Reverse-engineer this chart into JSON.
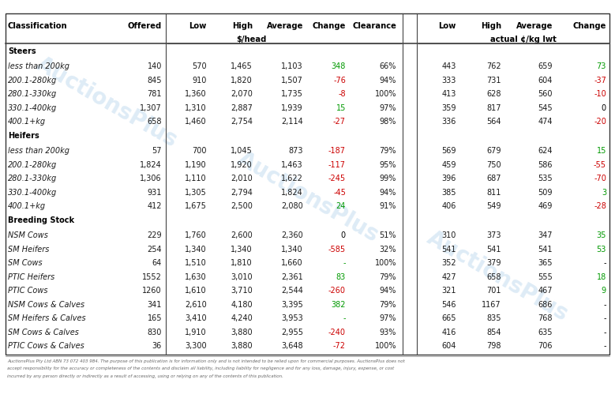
{
  "footer": "AuctionsPlus Pty Ltd ABN 73 072 403 984. The purpose of this publication is for information only and is not intended to be relied upon for commercial purposes. AuctionsPlus does not accept responsibility for the accuracy or completeness of the contents and disclaim all liability, including liability for negligence and for any loss, damage, injury, expense, or cost incurred by any person directly or indirectly as a result of accessing, using or relying on any of the contents of this publication.",
  "sections": [
    {
      "name": "Steers",
      "rows": [
        {
          "label": "less than 200kg",
          "offered": "140",
          "low": "570",
          "high": "1,465",
          "avg": "1,103",
          "change": "348",
          "change_color": "green",
          "clearance": "66%",
          "low2": "443",
          "high2": "762",
          "avg2": "659",
          "change2": "73",
          "change2_color": "green"
        },
        {
          "label": "200.1-280kg",
          "offered": "845",
          "low": "910",
          "high": "1,820",
          "avg": "1,507",
          "change": "-76",
          "change_color": "red",
          "clearance": "94%",
          "low2": "333",
          "high2": "731",
          "avg2": "604",
          "change2": "-37",
          "change2_color": "red"
        },
        {
          "label": "280.1-330kg",
          "offered": "781",
          "low": "1,360",
          "high": "2,070",
          "avg": "1,735",
          "change": "-8",
          "change_color": "red",
          "clearance": "100%",
          "low2": "413",
          "high2": "628",
          "avg2": "560",
          "change2": "-10",
          "change2_color": "red"
        },
        {
          "label": "330.1-400kg",
          "offered": "1,307",
          "low": "1,310",
          "high": "2,887",
          "avg": "1,939",
          "change": "15",
          "change_color": "green",
          "clearance": "97%",
          "low2": "359",
          "high2": "817",
          "avg2": "545",
          "change2": "0",
          "change2_color": "black"
        },
        {
          "label": "400.1+kg",
          "offered": "658",
          "low": "1,460",
          "high": "2,754",
          "avg": "2,114",
          "change": "-27",
          "change_color": "red",
          "clearance": "98%",
          "low2": "336",
          "high2": "564",
          "avg2": "474",
          "change2": "-20",
          "change2_color": "red"
        }
      ]
    },
    {
      "name": "Heifers",
      "rows": [
        {
          "label": "less than 200kg",
          "offered": "57",
          "low": "700",
          "high": "1,045",
          "avg": "873",
          "change": "-187",
          "change_color": "red",
          "clearance": "79%",
          "low2": "569",
          "high2": "679",
          "avg2": "624",
          "change2": "15",
          "change2_color": "green"
        },
        {
          "label": "200.1-280kg",
          "offered": "1,824",
          "low": "1,190",
          "high": "1,920",
          "avg": "1,463",
          "change": "-117",
          "change_color": "red",
          "clearance": "95%",
          "low2": "459",
          "high2": "750",
          "avg2": "586",
          "change2": "-55",
          "change2_color": "red"
        },
        {
          "label": "280.1-330kg",
          "offered": "1,306",
          "low": "1,110",
          "high": "2,010",
          "avg": "1,622",
          "change": "-245",
          "change_color": "red",
          "clearance": "99%",
          "low2": "396",
          "high2": "687",
          "avg2": "535",
          "change2": "-70",
          "change2_color": "red"
        },
        {
          "label": "330.1-400kg",
          "offered": "931",
          "low": "1,305",
          "high": "2,794",
          "avg": "1,824",
          "change": "-45",
          "change_color": "red",
          "clearance": "94%",
          "low2": "385",
          "high2": "811",
          "avg2": "509",
          "change2": "3",
          "change2_color": "green"
        },
        {
          "label": "400.1+kg",
          "offered": "412",
          "low": "1,675",
          "high": "2,500",
          "avg": "2,080",
          "change": "24",
          "change_color": "green",
          "clearance": "91%",
          "low2": "406",
          "high2": "549",
          "avg2": "469",
          "change2": "-28",
          "change2_color": "red"
        }
      ]
    },
    {
      "name": "Breeding Stock",
      "rows": [
        {
          "label": "NSM Cows",
          "offered": "229",
          "low": "1,760",
          "high": "2,600",
          "avg": "2,360",
          "change": "0",
          "change_color": "black",
          "clearance": "51%",
          "low2": "310",
          "high2": "373",
          "avg2": "347",
          "change2": "35",
          "change2_color": "green"
        },
        {
          "label": "SM Heifers",
          "offered": "254",
          "low": "1,340",
          "high": "1,340",
          "avg": "1,340",
          "change": "-585",
          "change_color": "red",
          "clearance": "32%",
          "low2": "541",
          "high2": "541",
          "avg2": "541",
          "change2": "53",
          "change2_color": "green"
        },
        {
          "label": "SM Cows",
          "offered": "64",
          "low": "1,510",
          "high": "1,810",
          "avg": "1,660",
          "change": "-",
          "change_color": "green",
          "clearance": "100%",
          "low2": "352",
          "high2": "379",
          "avg2": "365",
          "change2": "-",
          "change2_color": "black"
        },
        {
          "label": "PTIC Heifers",
          "offered": "1552",
          "low": "1,630",
          "high": "3,010",
          "avg": "2,361",
          "change": "83",
          "change_color": "green",
          "clearance": "79%",
          "low2": "427",
          "high2": "658",
          "avg2": "555",
          "change2": "18",
          "change2_color": "green"
        },
        {
          "label": "PTIC Cows",
          "offered": "1260",
          "low": "1,610",
          "high": "3,710",
          "avg": "2,544",
          "change": "-260",
          "change_color": "red",
          "clearance": "94%",
          "low2": "321",
          "high2": "701",
          "avg2": "467",
          "change2": "9",
          "change2_color": "green"
        },
        {
          "label": "NSM Cows & Calves",
          "offered": "341",
          "low": "2,610",
          "high": "4,180",
          "avg": "3,395",
          "change": "382",
          "change_color": "green",
          "clearance": "79%",
          "low2": "546",
          "high2": "1167",
          "avg2": "686",
          "change2": "-",
          "change2_color": "black"
        },
        {
          "label": "SM Heifers & Calves",
          "offered": "165",
          "low": "3,410",
          "high": "4,240",
          "avg": "3,953",
          "change": "-",
          "change_color": "green",
          "clearance": "97%",
          "low2": "665",
          "high2": "835",
          "avg2": "768",
          "change2": "-",
          "change2_color": "black"
        },
        {
          "label": "SM Cows & Calves",
          "offered": "830",
          "low": "1,910",
          "high": "3,880",
          "avg": "2,955",
          "change": "-240",
          "change_color": "red",
          "clearance": "93%",
          "low2": "416",
          "high2": "854",
          "avg2": "635",
          "change2": "-",
          "change2_color": "black"
        },
        {
          "label": "PTIC Cows & Calves",
          "offered": "36",
          "low": "3,300",
          "high": "3,880",
          "avg": "3,648",
          "change": "-72",
          "change_color": "red",
          "clearance": "100%",
          "low2": "604",
          "high2": "798",
          "avg2": "706",
          "change2": "-",
          "change2_color": "black"
        }
      ]
    }
  ],
  "bg_color": "#ffffff",
  "watermark_color": "#c8dff0",
  "green_color": "#009900",
  "red_color": "#cc0000",
  "black_color": "#000000",
  "text_color": "#1a1a1a",
  "line_color": "#555555",
  "footer_color": "#666666"
}
